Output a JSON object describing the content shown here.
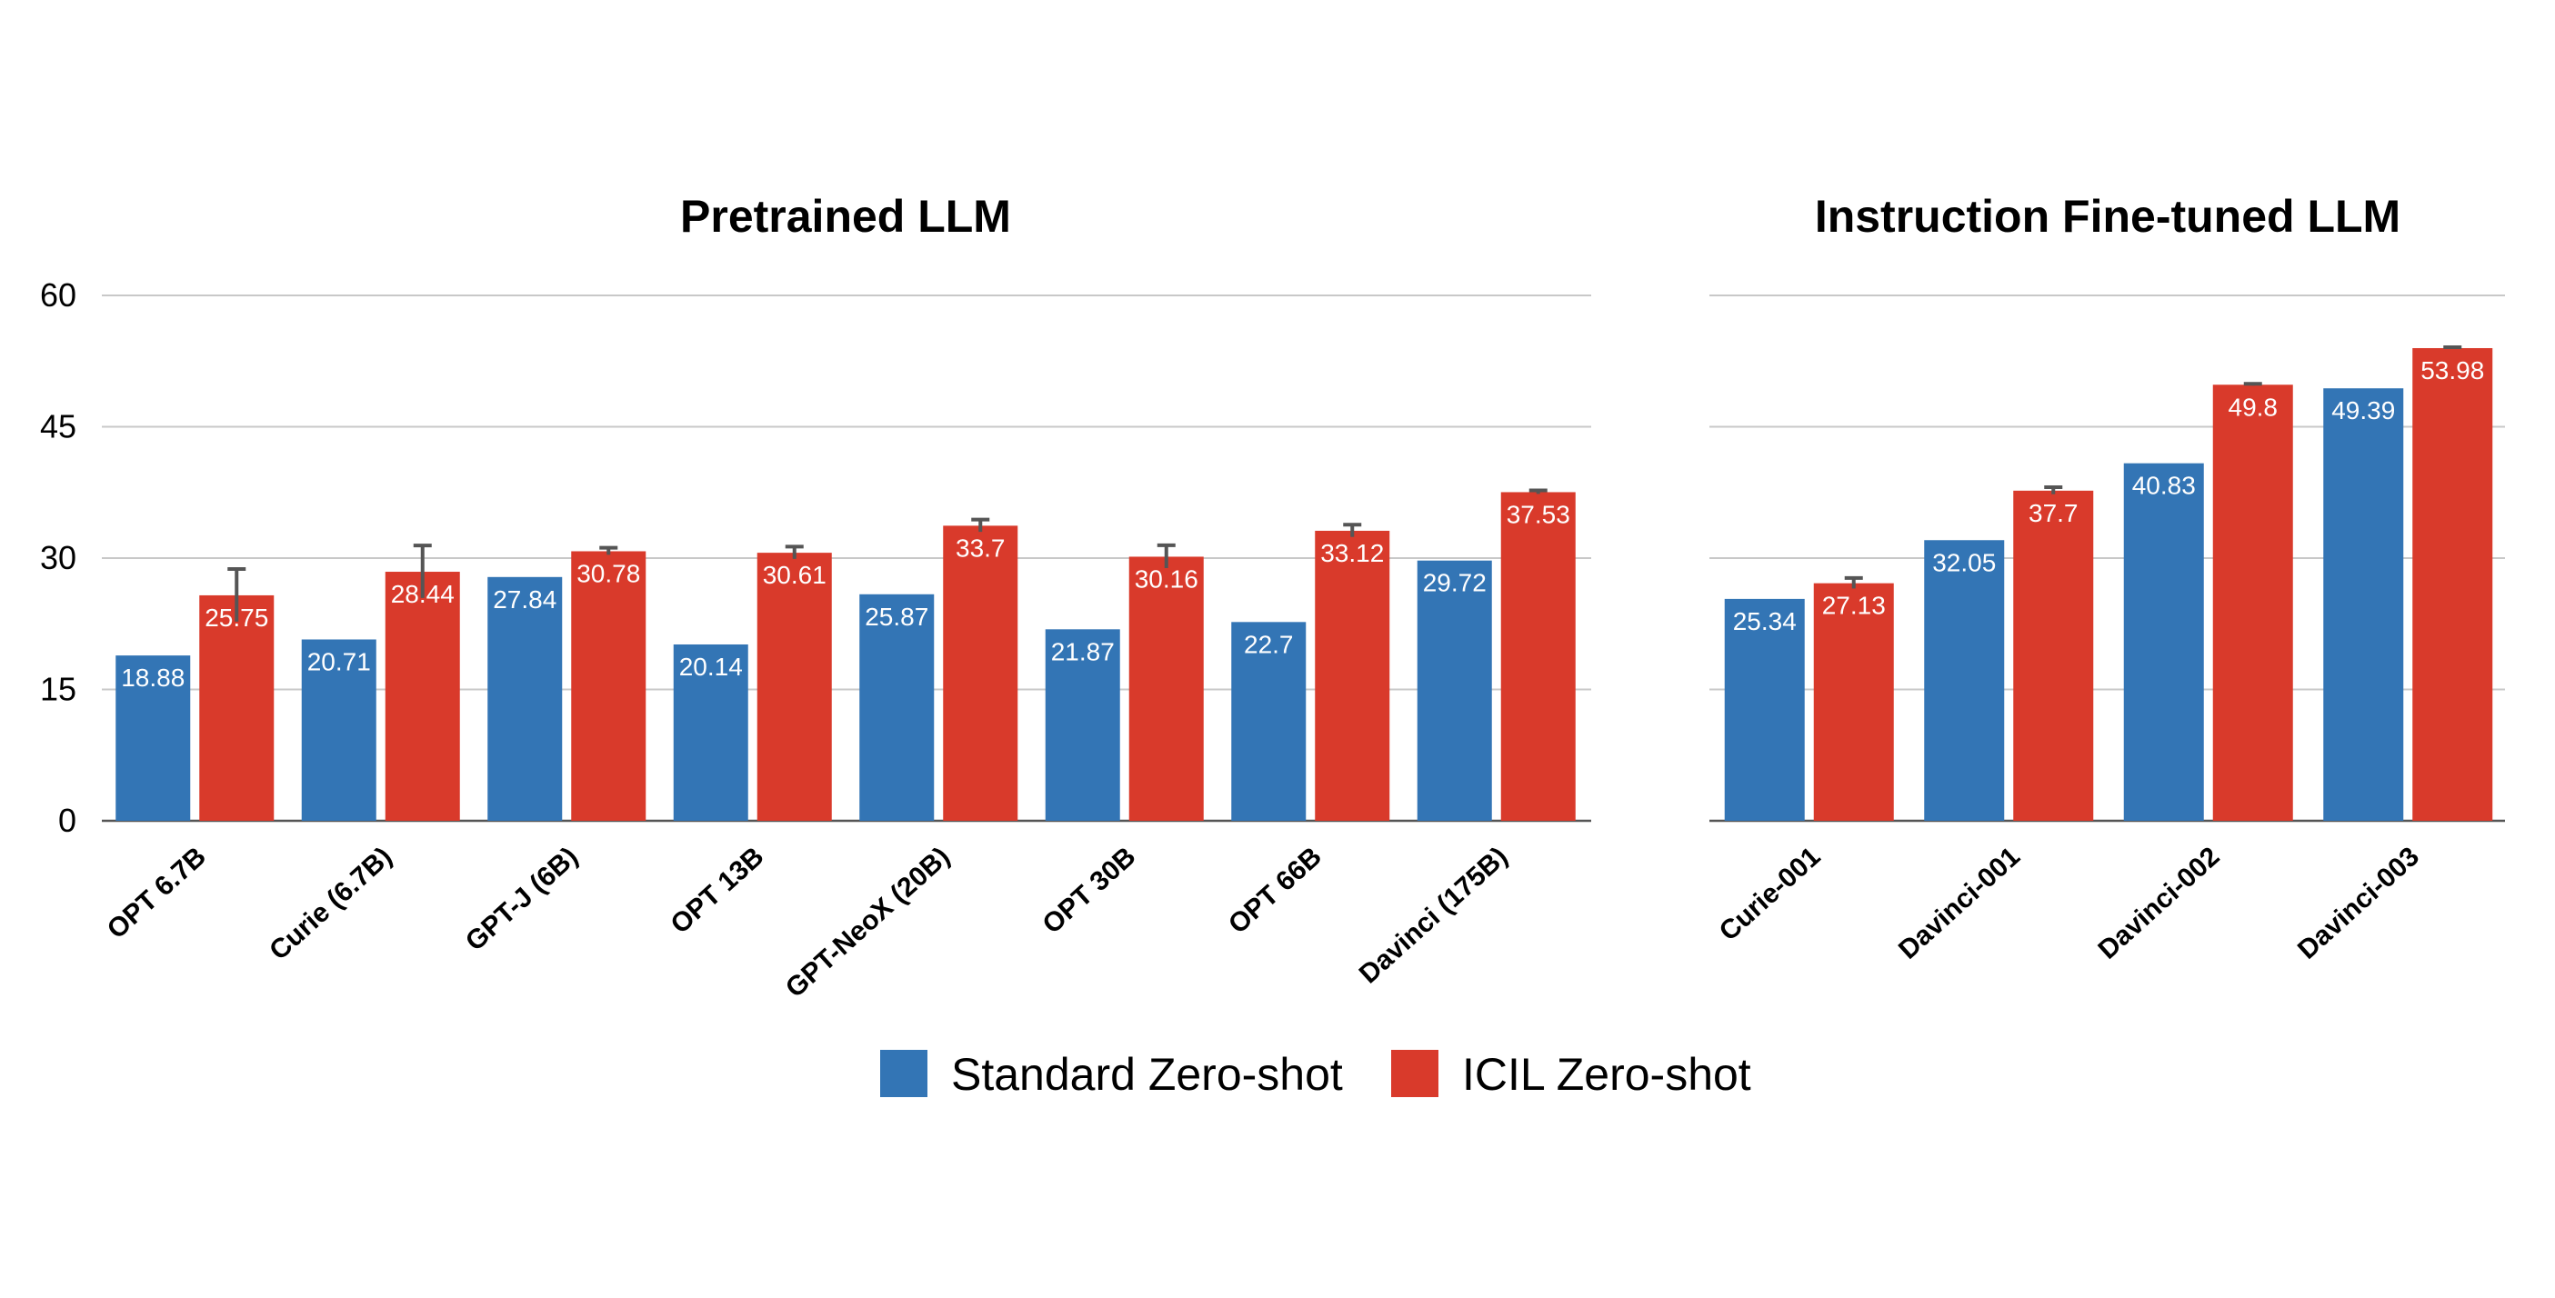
{
  "colors": {
    "standard": "#3375b5",
    "icil": "#d93a2b"
  },
  "legend": [
    {
      "label": "Standard Zero-shot",
      "color": "#3375b5"
    },
    {
      "label": "ICIL Zero-shot",
      "color": "#d93a2b"
    }
  ],
  "chart_data": [
    {
      "type": "bar",
      "title": "Pretrained LLM",
      "categories": [
        "OPT 6.7B",
        "Curie (6.7B)",
        "GPT-J (6B)",
        "OPT 13B",
        "GPT-NeoX (20B)",
        "OPT 30B",
        "OPT 66B",
        "Davinci (175B)"
      ],
      "series": [
        {
          "name": "Standard Zero-shot",
          "values": [
            18.88,
            20.71,
            27.84,
            20.14,
            25.87,
            21.87,
            22.7,
            29.72
          ]
        },
        {
          "name": "ICIL Zero-shot",
          "values": [
            25.75,
            28.44,
            30.78,
            30.61,
            33.7,
            30.16,
            33.12,
            37.53
          ],
          "error": [
            3.0,
            3.0,
            0.4,
            0.7,
            0.7,
            1.3,
            0.7,
            0.2
          ]
        }
      ],
      "ylim": [
        0,
        60
      ],
      "yticks": [
        0,
        15,
        30,
        45,
        60
      ],
      "grid": true
    },
    {
      "type": "bar",
      "title": "Instruction Fine-tuned LLM",
      "categories": [
        "Curie-001",
        "Davinci-001",
        "Davinci-002",
        "Davinci-003"
      ],
      "series": [
        {
          "name": "Standard Zero-shot",
          "values": [
            25.34,
            32.05,
            40.83,
            49.39
          ]
        },
        {
          "name": "ICIL Zero-shot",
          "values": [
            27.13,
            37.7,
            49.8,
            53.98
          ],
          "error": [
            0.6,
            0.4,
            0.1,
            0.1
          ]
        }
      ],
      "ylim": [
        0,
        60
      ],
      "yticks": [
        0,
        15,
        30,
        45,
        60
      ],
      "grid": true
    }
  ]
}
